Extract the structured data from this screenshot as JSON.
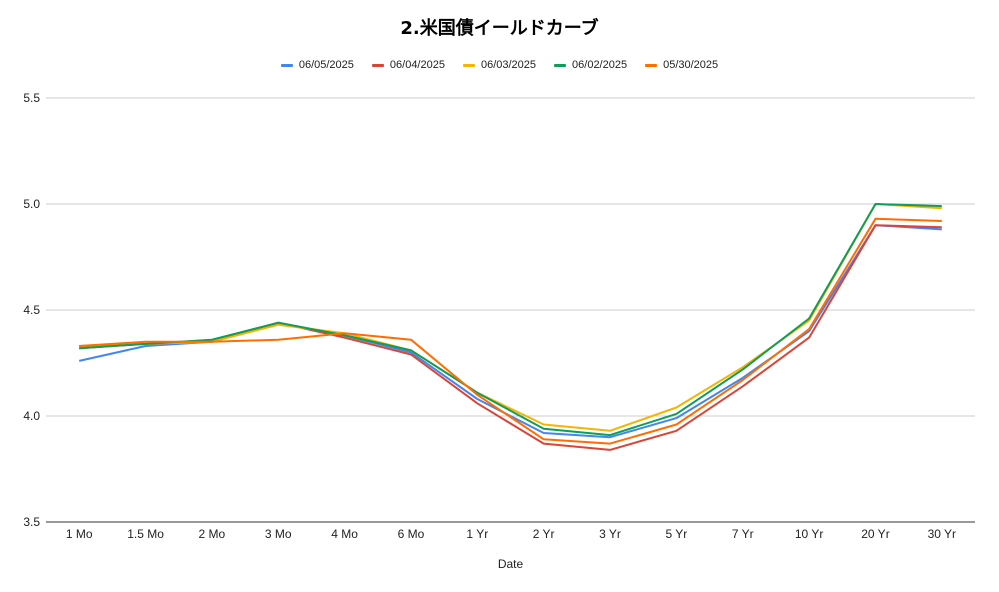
{
  "chart_data": {
    "type": "line",
    "title": "2.米国債イールドカーブ",
    "xlabel": "Date",
    "ylabel": "",
    "ylim": [
      3.5,
      5.5
    ],
    "yticks": [
      "3.5",
      "4.0",
      "4.5",
      "5.0",
      "5.5"
    ],
    "categories": [
      "1 Mo",
      "1.5 Mo",
      "2 Mo",
      "3 Mo",
      "4 Mo",
      "6 Mo",
      "1 Yr",
      "2 Yr",
      "3 Yr",
      "5 Yr",
      "7 Yr",
      "10 Yr",
      "20 Yr",
      "30 Yr"
    ],
    "grid": true,
    "legend_position": "top",
    "series": [
      {
        "name": "06/05/2025",
        "color": "#4285f4",
        "values": [
          4.26,
          4.33,
          4.35,
          4.44,
          4.38,
          4.3,
          4.08,
          3.92,
          3.9,
          3.99,
          4.18,
          4.4,
          4.9,
          4.88
        ]
      },
      {
        "name": "06/04/2025",
        "color": "#db4437",
        "values": [
          4.32,
          4.34,
          4.35,
          4.44,
          4.37,
          4.29,
          4.06,
          3.87,
          3.84,
          3.93,
          4.14,
          4.37,
          4.9,
          4.89
        ]
      },
      {
        "name": "06/03/2025",
        "color": "#f4b400",
        "values": [
          4.33,
          4.34,
          4.35,
          4.43,
          4.39,
          4.31,
          4.11,
          3.96,
          3.93,
          4.04,
          4.23,
          4.45,
          5.0,
          4.98
        ]
      },
      {
        "name": "06/02/2025",
        "color": "#0f9d58",
        "values": [
          4.32,
          4.34,
          4.36,
          4.44,
          4.38,
          4.31,
          4.11,
          3.94,
          3.91,
          4.01,
          4.22,
          4.46,
          5.0,
          4.99
        ]
      },
      {
        "name": "05/30/2025",
        "color": "#ff6d01",
        "values": [
          4.33,
          4.35,
          4.35,
          4.36,
          4.39,
          4.36,
          4.1,
          3.89,
          3.87,
          3.96,
          4.17,
          4.41,
          4.93,
          4.92
        ]
      }
    ]
  }
}
